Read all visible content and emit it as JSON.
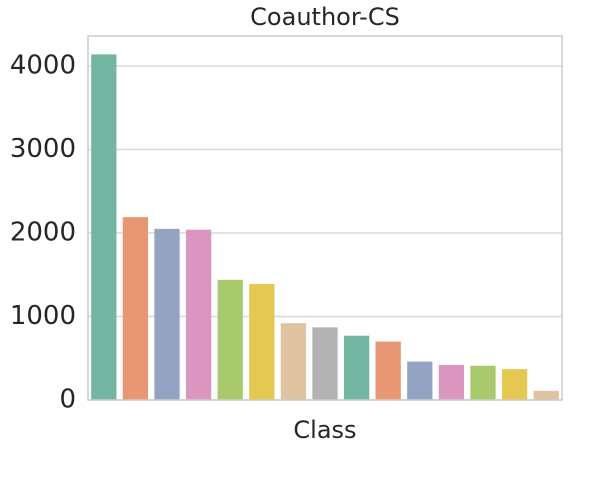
{
  "chart_data": {
    "type": "bar",
    "title": "Coauthor-CS",
    "x_label": "Class",
    "categories": [
      null,
      null,
      null,
      null,
      null,
      null,
      null,
      null,
      null,
      null,
      null,
      null,
      null,
      null,
      null
    ],
    "values": [
      4140,
      2190,
      2050,
      2040,
      1440,
      1390,
      920,
      870,
      770,
      700,
      460,
      420,
      410,
      370,
      110
    ],
    "colors": [
      "#72b6a1",
      "#e99675",
      "#95a3c3",
      "#db96c0",
      "#a9ca6c",
      "#e4c852",
      "#dfc29f",
      "#b3b3b3",
      "#72b6a1",
      "#e99675",
      "#95a3c3",
      "#db96c0",
      "#a9ca6c",
      "#e4c852",
      "#dfc29f"
    ],
    "ylim": [
      0,
      4360
    ],
    "yticks": [
      0,
      1000,
      2000,
      3000,
      4000
    ],
    "grid": true
  }
}
